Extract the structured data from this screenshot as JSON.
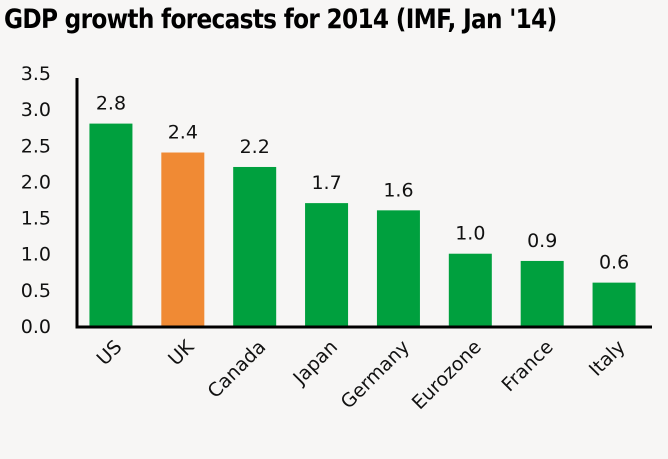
{
  "chart_data": {
    "type": "bar",
    "title": "GDP growth forecasts for 2014 (IMF, Jan '14)",
    "xlabel": "",
    "ylabel": "",
    "categories": [
      "US",
      "UK",
      "Canada",
      "Japan",
      "Germany",
      "Eurozone",
      "France",
      "Italy"
    ],
    "values": [
      2.8,
      2.4,
      2.2,
      1.7,
      1.6,
      1.0,
      0.9,
      0.6
    ],
    "data_labels": [
      "2.8",
      "2.4",
      "2.2",
      "1.7",
      "1.6",
      "1.0",
      "0.9",
      "0.6"
    ],
    "ylim": [
      0,
      3.5
    ],
    "yticks": [
      "0.0",
      "0.5",
      "1.0",
      "1.5",
      "2.0",
      "2.5",
      "3.0",
      "3.5"
    ],
    "ytick_values": [
      0,
      0.5,
      1.0,
      1.5,
      2.0,
      2.5,
      3.0,
      3.5
    ],
    "grid": false,
    "legend": "none",
    "colors": {
      "default": "#00a03e",
      "highlight": "#f08a34",
      "axis": "#000000"
    },
    "highlight_category": "UK"
  }
}
